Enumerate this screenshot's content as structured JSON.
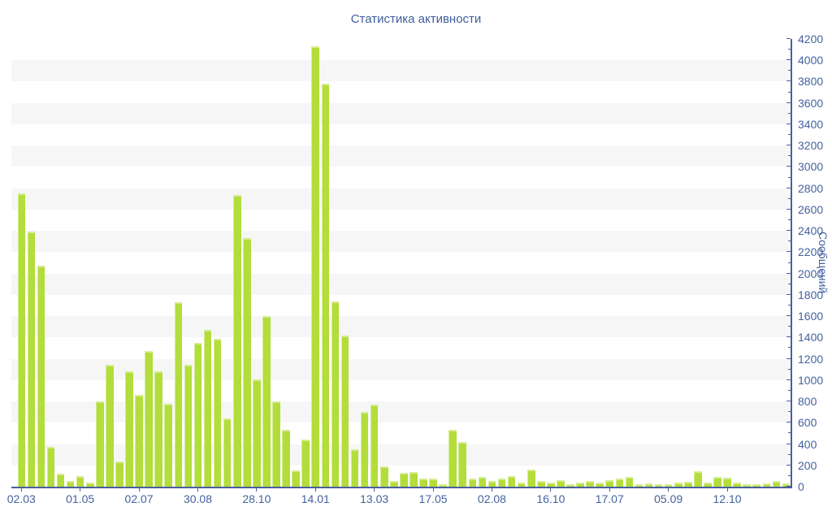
{
  "chart_data": {
    "type": "bar",
    "title": "Статистика активности",
    "xlabel": "",
    "ylabel": "Сообщений",
    "y_axis": {
      "min": 0,
      "max": 4200,
      "step": 200,
      "minor_step": 100,
      "side": "right"
    },
    "grid": "alternating horizontal bands, no gridlines",
    "legend": "none",
    "values": [
      2750,
      2390,
      2070,
      370,
      120,
      50,
      100,
      35,
      800,
      1140,
      240,
      1080,
      860,
      1270,
      1080,
      780,
      1730,
      1140,
      1350,
      1470,
      1390,
      640,
      2740,
      2330,
      1010,
      1600,
      800,
      530,
      150,
      440,
      4130,
      3780,
      1740,
      1420,
      350,
      700,
      770,
      190,
      50,
      130,
      140,
      80,
      80,
      20,
      530,
      420,
      80,
      95,
      50,
      80,
      100,
      40,
      160,
      50,
      35,
      60,
      25,
      35,
      50,
      35,
      60,
      75,
      95,
      20,
      30,
      25,
      25,
      35,
      45,
      145,
      35,
      95,
      85,
      40,
      25,
      20,
      30,
      55,
      30
    ],
    "x_ticks": [
      {
        "index": 0,
        "label": "02.03"
      },
      {
        "index": 6,
        "label": "01.05"
      },
      {
        "index": 12,
        "label": "02.07"
      },
      {
        "index": 18,
        "label": "30.08"
      },
      {
        "index": 24,
        "label": "28.10"
      },
      {
        "index": 30,
        "label": "14.01"
      },
      {
        "index": 36,
        "label": "13.03"
      },
      {
        "index": 42,
        "label": "17.05"
      },
      {
        "index": 48,
        "label": "02.08"
      },
      {
        "index": 54,
        "label": "16.10"
      },
      {
        "index": 60,
        "label": "17.07"
      },
      {
        "index": 66,
        "label": "05.09"
      },
      {
        "index": 72,
        "label": "12.10"
      }
    ]
  },
  "colors": {
    "bar": "#b3dd3a",
    "bar_highlight": "#d3ec8a",
    "axis": "#4a5f9f",
    "label": "#44629f",
    "title": "#3f5d9c",
    "stripe": "#f6f6f7",
    "background": "#ffffff"
  }
}
